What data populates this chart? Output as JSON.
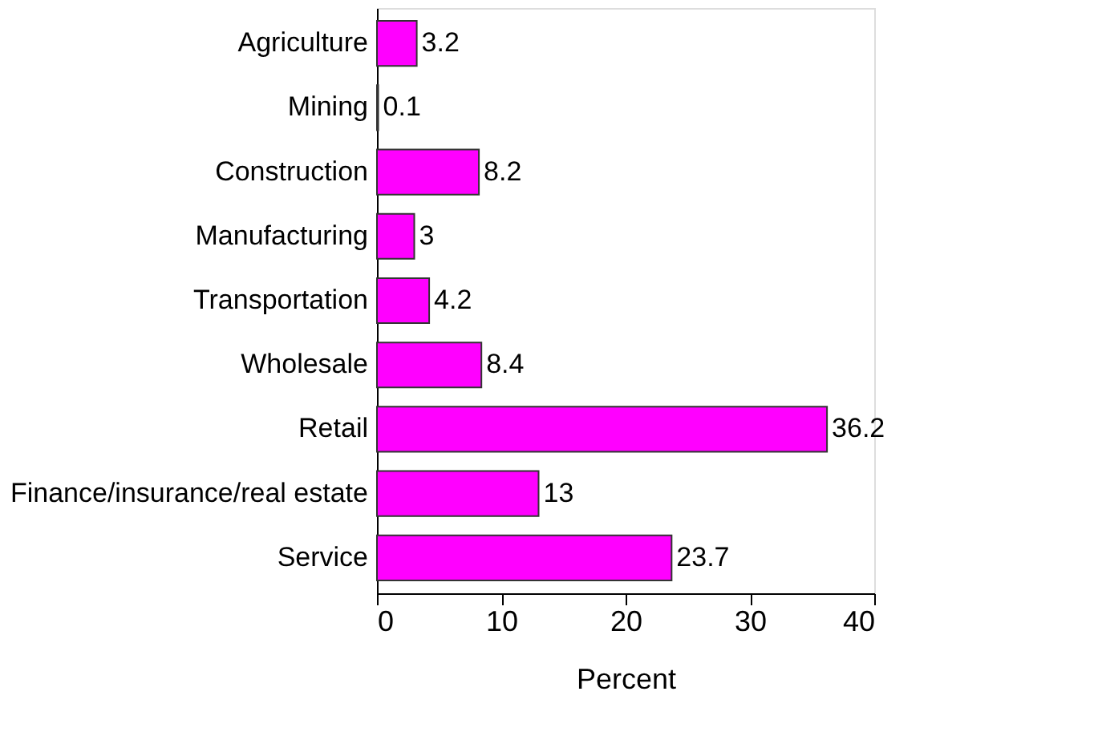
{
  "chart_data": {
    "type": "bar",
    "orientation": "horizontal",
    "xlabel": "Percent",
    "categories": [
      "Agriculture",
      "Mining",
      "Construction",
      "Manufacturing",
      "Transportation",
      "Wholesale",
      "Retail",
      "Finance/insurance/real estate",
      "Service"
    ],
    "values": [
      3.2,
      0.1,
      8.2,
      3,
      4.2,
      8.4,
      36.2,
      13,
      23.7
    ],
    "color": "#ff00ff",
    "xlim": [
      0,
      40
    ],
    "xticks": [
      0,
      10,
      20,
      30,
      40
    ],
    "grid": false,
    "data_labels": true
  }
}
